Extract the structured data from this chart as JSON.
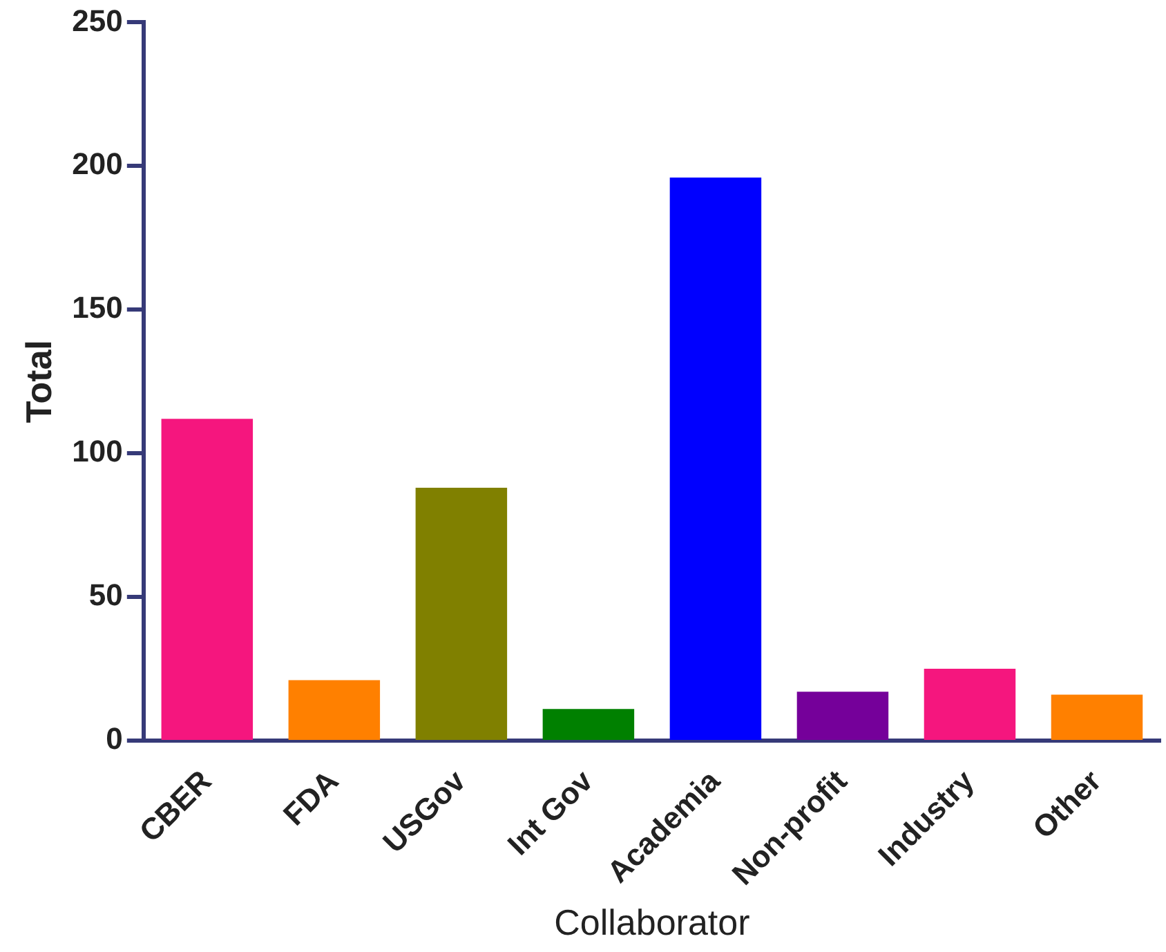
{
  "chart_data": {
    "type": "bar",
    "xlabel": "Collaborator",
    "ylabel": "Total",
    "categories": [
      "CBER",
      "FDA",
      "USGov",
      "Int Gov",
      "Academia",
      "Non-profit",
      "Industry",
      "Other"
    ],
    "values": [
      112,
      21,
      88,
      11,
      196,
      17,
      25,
      16
    ],
    "colors": [
      "#f5167e",
      "#ff8000",
      "#808000",
      "#008000",
      "#0000ff",
      "#75009a",
      "#f5167e",
      "#ff8000"
    ],
    "ylim": [
      0,
      250
    ],
    "yticks": [
      0,
      50,
      100,
      150,
      200,
      250
    ],
    "grid": false,
    "legend": false
  }
}
